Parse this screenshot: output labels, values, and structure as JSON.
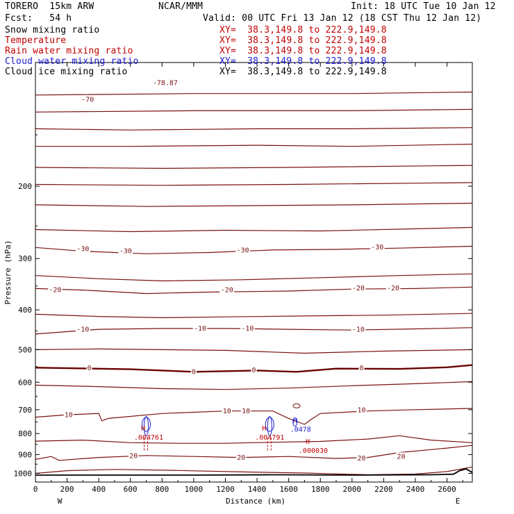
{
  "header": {
    "model": "TORERO  15km ARW",
    "center": "NCAR/MMM",
    "init": "Init: 18 UTC Tue 10 Jan 12",
    "fcst": "Fcst:   54 h",
    "valid": "Valid: 00 UTC Fri 13 Jan 12 (18 CST Thu 12 Jan 12)"
  },
  "legend": [
    {
      "name": "Snow mixing ratio",
      "xy": "XY=  38.3,149.8 to 222.9,149.8",
      "color": "#000000"
    },
    {
      "name": "Temperature",
      "xy": "XY=  38.3,149.8 to 222.9,149.8",
      "color": "#c00000"
    },
    {
      "name": "Rain water mixing ratio",
      "xy": "XY=  38.3,149.8 to 222.9,149.8",
      "color": "#c00000"
    },
    {
      "name": "Cloud water mixing ratio",
      "xy": "XY=  38.3,149.8 to 222.9,149.8",
      "color": "#1c1cd0"
    },
    {
      "name": "Cloud ice mixing ratio",
      "xy": "XY=  38.3,149.8 to 222.9,149.8",
      "color": "#000000"
    }
  ],
  "colors": {
    "temperature": "#7a1010",
    "rain": "#c00000",
    "cloud_water": "#1c1cd0",
    "terrain": "#000000",
    "zero_isotherm": "#6a0000"
  },
  "chart_data": {
    "type": "line",
    "subtype": "vertical cross-section contour plot",
    "xlabel": "Distance (km)",
    "ylabel": "Pressure (hPa)",
    "xlim": [
      0,
      2760
    ],
    "ylim": [
      1050,
      100
    ],
    "y_scale": "log",
    "x_ticks": [
      0,
      200,
      400,
      600,
      800,
      1000,
      1200,
      1400,
      1600,
      1800,
      2000,
      2200,
      2400,
      2600
    ],
    "y_ticks": [
      200,
      300,
      400,
      500,
      600,
      700,
      800,
      900,
      1000
    ],
    "x_end_labels": {
      "left": "W",
      "right": "E"
    },
    "temperature_contours": [
      {
        "level": -70,
        "p": [
          [
            0,
            120
          ],
          [
            1000,
            119
          ],
          [
            2000,
            119
          ],
          [
            2760,
            118
          ]
        ]
      },
      {
        "level": -65,
        "p": [
          [
            0,
            132
          ],
          [
            1000,
            131
          ],
          [
            2000,
            131
          ],
          [
            2760,
            130
          ]
        ]
      },
      {
        "level": -60,
        "p": [
          [
            0,
            145
          ],
          [
            600,
            146
          ],
          [
            1400,
            145
          ],
          [
            2000,
            145
          ],
          [
            2760,
            144
          ]
        ]
      },
      {
        "level": -55,
        "p": [
          [
            0,
            160
          ],
          [
            600,
            160
          ],
          [
            1400,
            159
          ],
          [
            2000,
            160
          ],
          [
            2760,
            158
          ]
        ]
      },
      {
        "level": -50,
        "p": [
          [
            0,
            180
          ],
          [
            800,
            181
          ],
          [
            1600,
            180
          ],
          [
            2760,
            178
          ]
        ]
      },
      {
        "level": -45,
        "p": [
          [
            0,
            198
          ],
          [
            800,
            199
          ],
          [
            1600,
            198
          ],
          [
            2760,
            196
          ]
        ]
      },
      {
        "level": -40,
        "p": [
          [
            0,
            222
          ],
          [
            700,
            224
          ],
          [
            1400,
            223
          ],
          [
            2000,
            222
          ],
          [
            2760,
            220
          ]
        ]
      },
      {
        "level": -35,
        "p": [
          [
            0,
            255
          ],
          [
            600,
            258
          ],
          [
            1200,
            256
          ],
          [
            1800,
            257
          ],
          [
            2400,
            254
          ],
          [
            2760,
            252
          ]
        ]
      },
      {
        "level": -30,
        "p": [
          [
            0,
            282
          ],
          [
            300,
            288
          ],
          [
            700,
            292
          ],
          [
            1100,
            290
          ],
          [
            1500,
            286
          ],
          [
            1900,
            285
          ],
          [
            2300,
            283
          ],
          [
            2760,
            280
          ]
        ]
      },
      {
        "level": -25,
        "p": [
          [
            0,
            330
          ],
          [
            400,
            336
          ],
          [
            800,
            340
          ],
          [
            1300,
            338
          ],
          [
            1800,
            334
          ],
          [
            2300,
            330
          ],
          [
            2760,
            327
          ]
        ]
      },
      {
        "level": -20,
        "p": [
          [
            0,
            355
          ],
          [
            300,
            358
          ],
          [
            700,
            365
          ],
          [
            1100,
            362
          ],
          [
            1600,
            360
          ],
          [
            2000,
            356
          ],
          [
            2400,
            355
          ],
          [
            2760,
            352
          ]
        ]
      },
      {
        "level": -15,
        "p": [
          [
            0,
            410
          ],
          [
            400,
            415
          ],
          [
            800,
            418
          ],
          [
            1200,
            416
          ],
          [
            1700,
            414
          ],
          [
            2200,
            412
          ],
          [
            2760,
            408
          ]
        ]
      },
      {
        "level": -10,
        "p": [
          [
            0,
            458
          ],
          [
            400,
            446
          ],
          [
            800,
            444
          ],
          [
            1200,
            444
          ],
          [
            1600,
            446
          ],
          [
            2000,
            448
          ],
          [
            2400,
            445
          ],
          [
            2760,
            442
          ]
        ]
      },
      {
        "level": -5,
        "p": [
          [
            0,
            500
          ],
          [
            400,
            498
          ],
          [
            800,
            500
          ],
          [
            1200,
            502
          ],
          [
            1700,
            510
          ],
          [
            2200,
            504
          ],
          [
            2760,
            500
          ]
        ]
      },
      {
        "level": 0,
        "p": [
          [
            0,
            553
          ],
          [
            600,
            558
          ],
          [
            1000,
            566
          ],
          [
            1400,
            562
          ],
          [
            1650,
            566
          ],
          [
            1900,
            556
          ],
          [
            2300,
            557
          ],
          [
            2600,
            552
          ],
          [
            2760,
            545
          ]
        ]
      },
      {
        "level": 5,
        "p": [
          [
            0,
            610
          ],
          [
            400,
            615
          ],
          [
            800,
            622
          ],
          [
            1200,
            625
          ],
          [
            1600,
            620
          ],
          [
            2000,
            612
          ],
          [
            2400,
            605
          ],
          [
            2760,
            598
          ]
        ]
      },
      {
        "level": 10,
        "p": [
          [
            0,
            730
          ],
          [
            200,
            720
          ],
          [
            400,
            715
          ],
          [
            420,
            745
          ],
          [
            460,
            735
          ],
          [
            800,
            715
          ],
          [
            1200,
            705
          ],
          [
            1500,
            705
          ],
          [
            1600,
            735
          ],
          [
            1700,
            760
          ],
          [
            1740,
            740
          ],
          [
            1800,
            715
          ],
          [
            2100,
            705
          ],
          [
            2400,
            700
          ],
          [
            2760,
            695
          ]
        ]
      },
      {
        "level": 15,
        "p": [
          [
            0,
            835
          ],
          [
            300,
            830
          ],
          [
            600,
            842
          ],
          [
            900,
            845
          ],
          [
            1200,
            845
          ],
          [
            1500,
            840
          ],
          [
            1800,
            836
          ],
          [
            2100,
            825
          ],
          [
            2300,
            810
          ],
          [
            2500,
            830
          ],
          [
            2760,
            842
          ]
        ]
      },
      {
        "level": 20,
        "p": [
          [
            0,
            925
          ],
          [
            100,
            910
          ],
          [
            150,
            930
          ],
          [
            400,
            915
          ],
          [
            700,
            905
          ],
          [
            1000,
            910
          ],
          [
            1300,
            915
          ],
          [
            1600,
            910
          ],
          [
            1900,
            920
          ],
          [
            2100,
            915
          ],
          [
            2300,
            890
          ],
          [
            2600,
            868
          ],
          [
            2760,
            855
          ]
        ]
      },
      {
        "level": 25,
        "p": [
          [
            0,
            1000
          ],
          [
            200,
            985
          ],
          [
            500,
            978
          ],
          [
            900,
            984
          ],
          [
            1300,
            992
          ],
          [
            1700,
            998
          ],
          [
            2100,
            1008
          ],
          [
            2400,
            1004
          ],
          [
            2600,
            990
          ],
          [
            2760,
            965
          ]
        ]
      }
    ],
    "temperature_labels": [
      {
        "value": "-70",
        "x": 330,
        "y": 123
      },
      {
        "value": "-78.87",
        "x": 820,
        "y": 112
      },
      {
        "value": "-30",
        "x": 300,
        "y": 284
      },
      {
        "value": "-30",
        "x": 570,
        "y": 287
      },
      {
        "value": "-30",
        "x": 1310,
        "y": 286
      },
      {
        "value": "-30",
        "x": 2160,
        "y": 281
      },
      {
        "value": "-20",
        "x": 125,
        "y": 357
      },
      {
        "value": "-20",
        "x": 1210,
        "y": 357
      },
      {
        "value": "-20",
        "x": 2040,
        "y": 354
      },
      {
        "value": "-20",
        "x": 2260,
        "y": 354
      },
      {
        "value": "-10",
        "x": 300,
        "y": 446
      },
      {
        "value": "-10",
        "x": 1040,
        "y": 443
      },
      {
        "value": "-10",
        "x": 1340,
        "y": 443
      },
      {
        "value": "-10",
        "x": 2040,
        "y": 446
      },
      {
        "value": "0",
        "x": 340,
        "y": 553
      },
      {
        "value": "0",
        "x": 1000,
        "y": 565
      },
      {
        "value": "0",
        "x": 1380,
        "y": 560
      },
      {
        "value": "0",
        "x": 2060,
        "y": 553
      },
      {
        "value": "10",
        "x": 210,
        "y": 720
      },
      {
        "value": "10",
        "x": 1210,
        "y": 705
      },
      {
        "value": "10",
        "x": 1330,
        "y": 705
      },
      {
        "value": "10",
        "x": 2060,
        "y": 701
      },
      {
        "value": "20",
        "x": 620,
        "y": 905
      },
      {
        "value": "20",
        "x": 1300,
        "y": 915
      },
      {
        "value": "20",
        "x": 2060,
        "y": 918
      },
      {
        "value": "20",
        "x": 2310,
        "y": 910
      }
    ],
    "max_markers": [
      {
        "label": "H",
        "value": ".004761",
        "x": 680,
        "y": 787,
        "color": "#c00000"
      },
      {
        "label": "H",
        "value": ".004791",
        "x": 1445,
        "y": 787,
        "color": "#c00000"
      },
      {
        "label": "H",
        "value": ".000030",
        "x": 1720,
        "y": 847,
        "color": "#c00000"
      },
      {
        "label": "H",
        "value": ".0478",
        "x": 1640,
        "y": 752,
        "color": "#1c1cd0"
      }
    ],
    "terrain": [
      [
        0,
        1010
      ],
      [
        500,
        1010
      ],
      [
        1000,
        1010
      ],
      [
        1500,
        1008
      ],
      [
        2000,
        1010
      ],
      [
        2500,
        1008
      ],
      [
        2640,
        1005
      ],
      [
        2680,
        985
      ],
      [
        2720,
        975
      ],
      [
        2760,
        995
      ]
    ]
  }
}
